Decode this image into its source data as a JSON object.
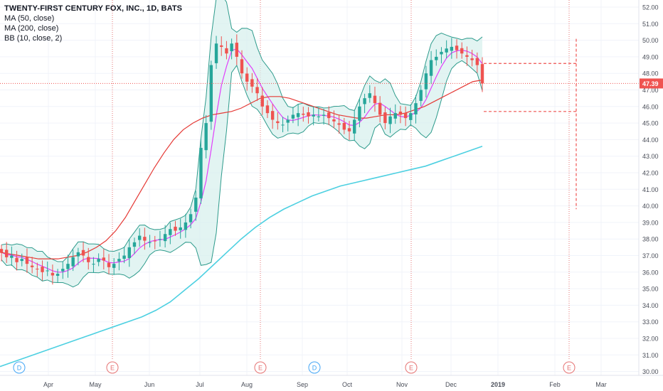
{
  "header": {
    "title": "TWENTY-FIRST CENTURY FOX, INC., 1D, BATS",
    "indicators": [
      "MA (50, close)",
      "MA (200, close)",
      "BB (10, close, 2)"
    ]
  },
  "colors": {
    "up": "#26a69a",
    "down": "#ef5350",
    "ma50": "#e53935",
    "ma200": "#4dd0e1",
    "bb_mid": "#e040fb",
    "bb_band": "#2e9b8c",
    "bb_fill": "#d6efec",
    "price_line": "#ef5350",
    "event_marker": "#e57373",
    "dividend_marker": "#42a5f5"
  },
  "chart_data": {
    "type": "candlestick",
    "symbol": "TWENTY-FIRST CENTURY FOX, INC.",
    "interval": "1D",
    "exchange": "BATS",
    "y_ticks": [
      "52.00",
      "51.00",
      "50.00",
      "49.00",
      "48.00",
      "47.00",
      "46.00",
      "45.00",
      "44.00",
      "43.00",
      "42.00",
      "41.00",
      "40.00",
      "39.00",
      "38.00",
      "37.00",
      "36.00",
      "35.00",
      "34.00",
      "33.00",
      "32.00",
      "31.00",
      "30.00"
    ],
    "ylim": [
      29.5,
      52.3
    ],
    "x_ticks": [
      "Apr",
      "May",
      "Jun",
      "Jul",
      "Aug",
      "Sep",
      "Oct",
      "Nov",
      "Dec",
      "2019",
      "Feb",
      "Mar"
    ],
    "last_price": "47.39",
    "earnings_markers": [
      "E",
      "E",
      "E",
      "E"
    ],
    "dividend_markers": [
      "D",
      "D"
    ],
    "close_series": [
      37.2,
      36.9,
      37.0,
      36.6,
      36.8,
      36.5,
      36.3,
      36.2,
      36.0,
      36.1,
      35.8,
      35.9,
      36.2,
      36.5,
      36.9,
      37.2,
      37.0,
      36.6,
      36.5,
      36.8,
      36.7,
      36.3,
      36.5,
      36.8,
      37.0,
      37.5,
      37.8,
      38.2,
      37.9,
      37.8,
      37.9,
      38.0,
      38.3,
      38.6,
      38.5,
      38.7,
      39.0,
      39.5,
      40.5,
      43.5,
      45.0,
      48.5,
      49.8,
      49.6,
      49.2,
      49.8,
      49.0,
      48.0,
      47.5,
      47.2,
      46.8,
      46.0,
      45.6,
      45.2,
      45.0,
      44.9,
      45.2,
      45.5,
      45.6,
      45.5,
      45.4,
      45.5,
      45.4,
      45.5,
      45.3,
      45.1,
      44.9,
      44.6,
      44.5,
      45.2,
      46.0,
      46.5,
      46.8,
      46.2,
      45.5,
      45.0,
      45.4,
      45.6,
      45.5,
      45.3,
      45.6,
      46.2,
      47.0,
      48.0,
      48.8,
      49.0,
      49.3,
      49.5,
      49.6,
      49.4,
      49.2,
      49.0,
      48.8,
      48.5,
      47.39
    ],
    "ma50_series": [
      37.2,
      37.1,
      37.0,
      36.9,
      36.8,
      36.8,
      36.8,
      36.9,
      37.0,
      37.2,
      37.5,
      37.9,
      38.5,
      39.3,
      40.3,
      41.3,
      42.3,
      43.2,
      44.0,
      44.6,
      45.0,
      45.3,
      45.5,
      45.6,
      45.7,
      45.9,
      46.2,
      46.5,
      46.6,
      46.6,
      46.5,
      46.3,
      46.1,
      45.9,
      45.7,
      45.5,
      45.4,
      45.3,
      45.3,
      45.4,
      45.5,
      45.5,
      45.6,
      45.8,
      46.0,
      46.3,
      46.6,
      46.9,
      47.2,
      47.5,
      47.6
    ],
    "ma200_series": [
      30.3,
      30.6,
      30.9,
      31.2,
      31.5,
      31.8,
      32.1,
      32.4,
      32.7,
      33.0,
      33.3,
      33.7,
      34.2,
      34.9,
      35.6,
      36.4,
      37.2,
      38.0,
      38.7,
      39.3,
      39.8,
      40.2,
      40.6,
      40.9,
      41.2,
      41.4,
      41.6,
      41.8,
      42.0,
      42.2,
      42.4,
      42.7,
      43.0,
      43.3,
      43.6
    ],
    "projection": {
      "upper": 48.6,
      "lower": 45.7,
      "bottom": 39.8
    }
  }
}
